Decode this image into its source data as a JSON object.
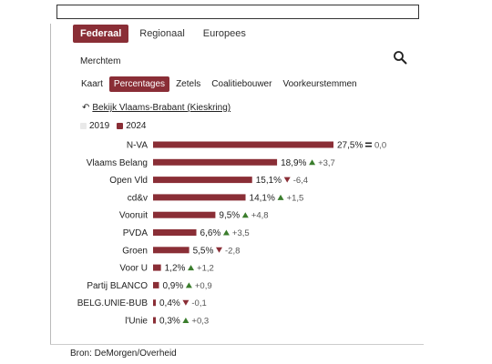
{
  "tabs": [
    "Federaal",
    "Regionaal",
    "Europees"
  ],
  "active_tab": 0,
  "location": "Merchtem",
  "subtabs": [
    "Kaart",
    "Percentages",
    "Zetels",
    "Coalitiebouwer",
    "Voorkeurstemmen"
  ],
  "active_subtab": 1,
  "link_text": "Bekijk Vlaams-Brabant (Kieskring)",
  "legend": {
    "items": [
      {
        "label": "2019",
        "color": "#e9e9e9"
      },
      {
        "label": "2024",
        "color": "#8a2e36"
      }
    ]
  },
  "colors": {
    "bar": "#8a2e36",
    "up": "#3a7d2c",
    "down": "#8a2e36",
    "neutral": "#555555"
  },
  "chart_data": {
    "type": "bar",
    "orientation": "horizontal",
    "categories": [
      "N-VA",
      "Vlaams Belang",
      "Open Vld",
      "cd&v",
      "Vooruit",
      "PVDA",
      "Groen",
      "Voor U",
      "Partij BLANCO",
      "BELG.UNIE-BUB",
      "l'Unie"
    ],
    "series": [
      {
        "name": "2024",
        "values": [
          27.5,
          18.9,
          15.1,
          14.1,
          9.5,
          6.6,
          5.5,
          1.2,
          0.9,
          0.4,
          0.3
        ]
      }
    ],
    "value_labels": [
      "27,5%",
      "18,9%",
      "15,1%",
      "14,1%",
      "9,5%",
      "6,6%",
      "5,5%",
      "1,2%",
      "0,9%",
      "0,4%",
      "0,3%"
    ],
    "change_direction": [
      "equal",
      "up",
      "down",
      "up",
      "up",
      "up",
      "down",
      "up",
      "up",
      "down",
      "up"
    ],
    "change_labels": [
      "0,0",
      "+3,7",
      "-6,4",
      "+1,5",
      "+4,8",
      "+3,5",
      "-2,8",
      "+1,2",
      "+0,9",
      "-0,1",
      "+0,3"
    ]
  },
  "source": "Bron: DeMorgen/Overheid"
}
